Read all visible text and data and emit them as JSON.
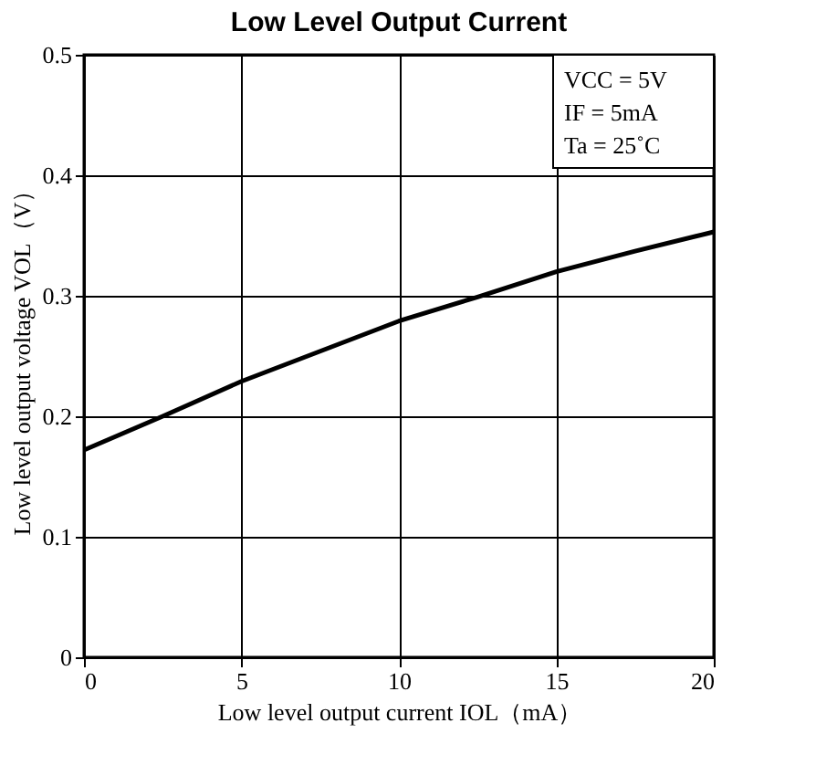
{
  "chart_data": {
    "type": "line",
    "title": "Low Level Output Current",
    "xlabel": "Low level output current IOL（mA）",
    "ylabel": "Low level output voltage VOL（V）",
    "x": [
      0,
      2.5,
      5,
      7.5,
      10,
      12.5,
      15,
      17.5,
      20
    ],
    "series": [
      {
        "color": "#000000",
        "values": [
          0.172,
          0.2,
          0.229,
          0.254,
          0.279,
          0.299,
          0.32,
          0.337,
          0.353
        ]
      }
    ],
    "xlim": [
      0,
      20
    ],
    "xticks": [
      0,
      5,
      10,
      15,
      20
    ],
    "ylim": [
      0,
      0.5
    ],
    "yticks": [
      0,
      0.1,
      0.2,
      0.3,
      0.4,
      0.5
    ],
    "annotations": [
      "VCC = 5V",
      "IF = 5mA",
      "Ta = 25˚C"
    ],
    "grid": true,
    "marker": "none",
    "line_style": "solid"
  }
}
